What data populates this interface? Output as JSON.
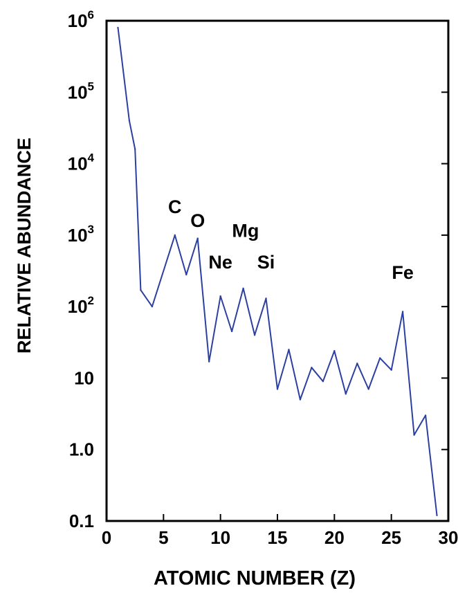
{
  "chart_data": {
    "type": "line",
    "title": "",
    "xlabel": "ATOMIC NUMBER (Z)",
    "ylabel": "RELATIVE ABUNDANCE",
    "x_scale": "linear",
    "y_scale": "log",
    "xlim": [
      0,
      30
    ],
    "ylim": [
      0.1,
      1000000
    ],
    "x_ticks": [
      {
        "value": 0,
        "label": "0"
      },
      {
        "value": 5,
        "label": "5"
      },
      {
        "value": 10,
        "label": "10"
      },
      {
        "value": 15,
        "label": "15"
      },
      {
        "value": 20,
        "label": "20"
      },
      {
        "value": 25,
        "label": "25"
      },
      {
        "value": 30,
        "label": "30"
      }
    ],
    "y_ticks": [
      {
        "value": 0.1,
        "label": "0.1"
      },
      {
        "value": 1,
        "label": "1.0"
      },
      {
        "value": 10,
        "label": "10"
      },
      {
        "value": 100,
        "base": "10",
        "exp": "2"
      },
      {
        "value": 1000,
        "base": "10",
        "exp": "3"
      },
      {
        "value": 10000,
        "base": "10",
        "exp": "4"
      },
      {
        "value": 100000,
        "base": "10",
        "exp": "5"
      },
      {
        "value": 1000000,
        "base": "10",
        "exp": "6"
      }
    ],
    "series": [
      {
        "color": "#2b3fa0",
        "points": [
          {
            "x": 1,
            "y": 800000
          },
          {
            "x": 2,
            "y": 40000
          },
          {
            "x": 2.5,
            "y": 16000
          },
          {
            "x": 3,
            "y": 170
          },
          {
            "x": 4,
            "y": 100
          },
          {
            "x": 6,
            "y": 1000
          },
          {
            "x": 7,
            "y": 280
          },
          {
            "x": 8,
            "y": 900
          },
          {
            "x": 9,
            "y": 17
          },
          {
            "x": 10,
            "y": 140
          },
          {
            "x": 11,
            "y": 45
          },
          {
            "x": 12,
            "y": 180
          },
          {
            "x": 13,
            "y": 40
          },
          {
            "x": 14,
            "y": 130
          },
          {
            "x": 15,
            "y": 7
          },
          {
            "x": 16,
            "y": 25
          },
          {
            "x": 17,
            "y": 5
          },
          {
            "x": 18,
            "y": 14
          },
          {
            "x": 19,
            "y": 9
          },
          {
            "x": 20,
            "y": 24
          },
          {
            "x": 21,
            "y": 6
          },
          {
            "x": 22,
            "y": 16
          },
          {
            "x": 23,
            "y": 7
          },
          {
            "x": 24,
            "y": 19
          },
          {
            "x": 25,
            "y": 13
          },
          {
            "x": 26,
            "y": 85
          },
          {
            "x": 27,
            "y": 1.6
          },
          {
            "x": 28,
            "y": 3
          },
          {
            "x": 29,
            "y": 0.12
          }
        ]
      }
    ],
    "annotations": [
      {
        "text": "C",
        "x": 6,
        "y": 2500
      },
      {
        "text": "O",
        "x": 8,
        "y": 1600
      },
      {
        "text": "Mg",
        "x": 12.2,
        "y": 1150
      },
      {
        "text": "Ne",
        "x": 10,
        "y": 420
      },
      {
        "text": "Si",
        "x": 14,
        "y": 420
      },
      {
        "text": "Fe",
        "x": 26,
        "y": 300
      }
    ],
    "grid": false,
    "legend": "none"
  }
}
